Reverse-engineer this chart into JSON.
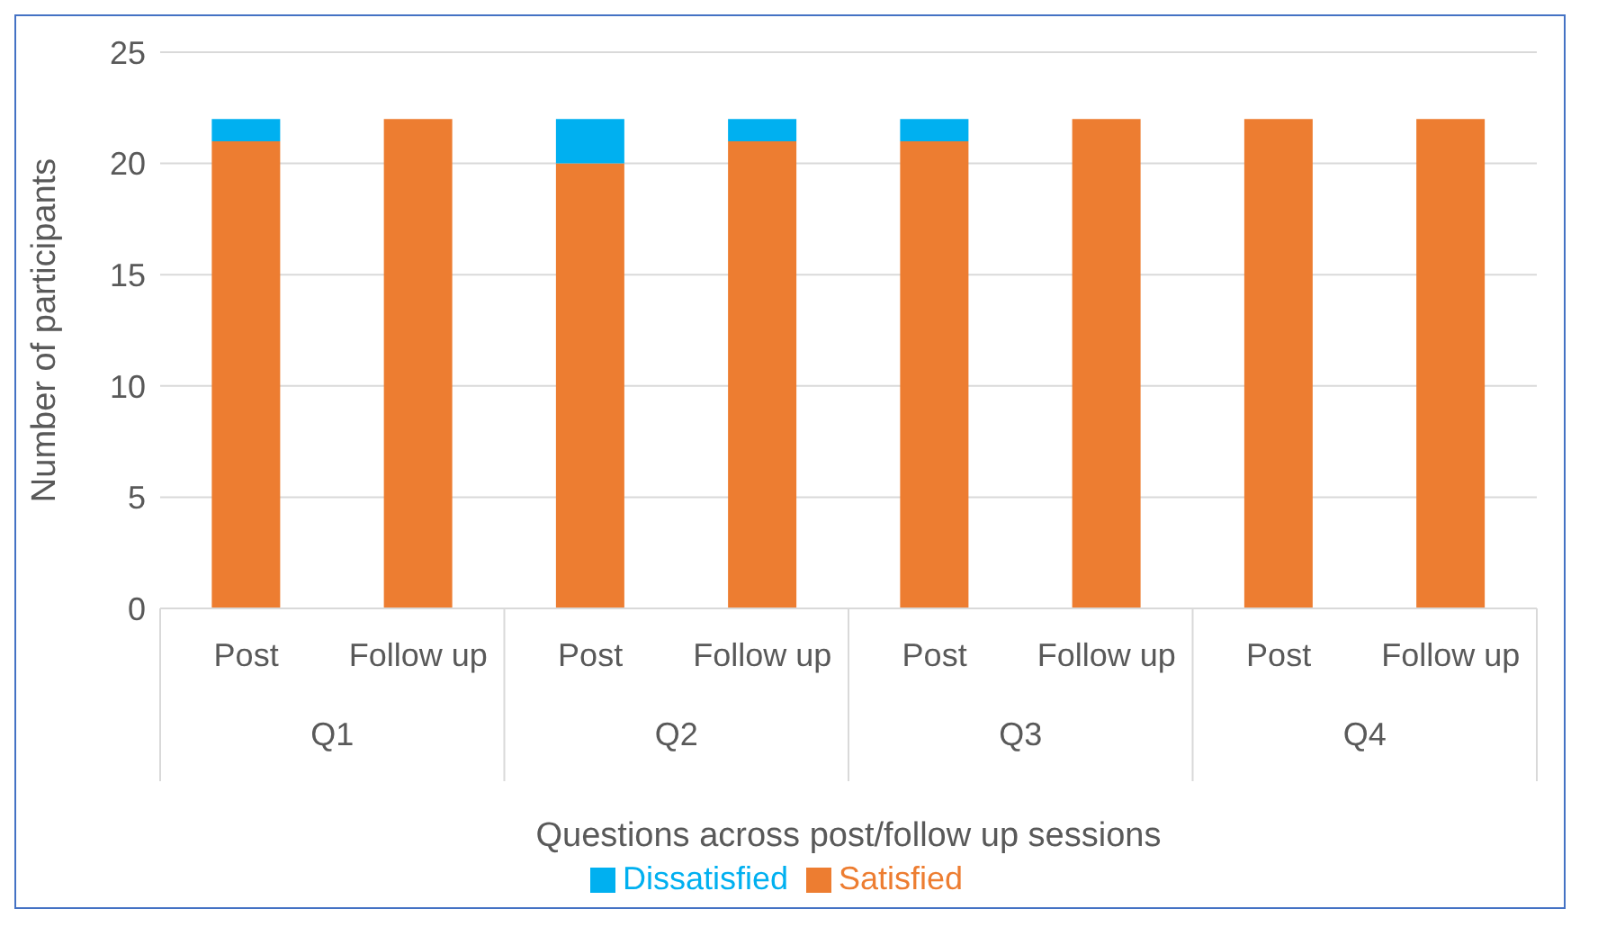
{
  "chart_data": {
    "type": "bar",
    "stacked": true,
    "xlabel": "Questions across post/follow up sessions",
    "ylabel": "Number of participants",
    "categories": [
      "Post",
      "Follow up",
      "Post",
      "Follow up",
      "Post",
      "Follow up",
      "Post",
      "Follow up"
    ],
    "annotations": [
      "Q1",
      "Q2",
      "Q3",
      "Q4"
    ],
    "series": [
      {
        "name": "Satisfied",
        "color": "#ed7d31",
        "values": [
          21,
          22,
          20,
          21,
          21,
          22,
          22,
          22
        ]
      },
      {
        "name": "Dissatisfied",
        "color": "#00b0f0",
        "values": [
          1,
          0,
          2,
          1,
          1,
          0,
          0,
          0
        ]
      }
    ],
    "ylim": [
      0,
      25
    ],
    "yticks": [
      0,
      5,
      10,
      15,
      20,
      25
    ],
    "grid": "y",
    "legend": "bottom"
  }
}
